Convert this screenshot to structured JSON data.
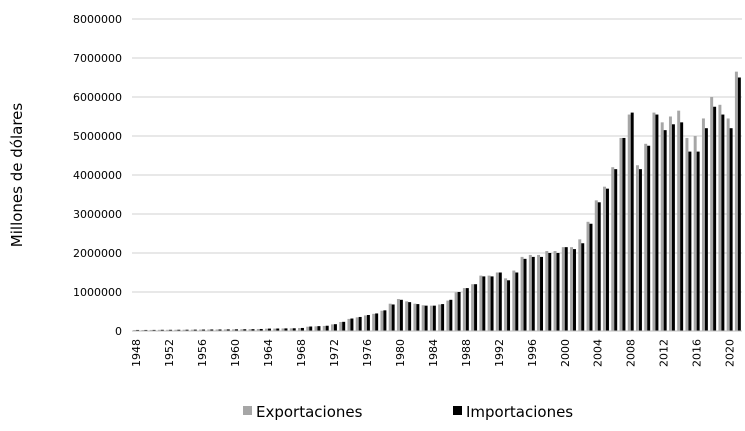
{
  "chart_data": {
    "type": "bar",
    "ylabel": "Millones de dólares",
    "categories": [
      "1948",
      null,
      null,
      null,
      "1952",
      null,
      null,
      null,
      "1956",
      null,
      null,
      null,
      "1960",
      null,
      null,
      null,
      "1964",
      null,
      null,
      null,
      "1968",
      null,
      null,
      null,
      "1972",
      null,
      null,
      null,
      "1976",
      null,
      null,
      null,
      "1980",
      null,
      null,
      null,
      "1984",
      null,
      null,
      null,
      "1988",
      null,
      null,
      null,
      "1992",
      null,
      null,
      null,
      "1996",
      null,
      null,
      null,
      "2000",
      null,
      null,
      null,
      "2004",
      null,
      null,
      null,
      "2008",
      null,
      null,
      null,
      "2012",
      null,
      null,
      null,
      "2016",
      null,
      null,
      null,
      "2020",
      null
    ],
    "series": [
      {
        "name": "Exportaciones",
        "color": "#a6a6a6",
        "values": [
          25000,
          25000,
          27000,
          30000,
          30000,
          31000,
          32000,
          34000,
          36000,
          38000,
          38000,
          40000,
          42000,
          44000,
          46000,
          50000,
          60000,
          62000,
          65000,
          68000,
          75000,
          110000,
          120000,
          130000,
          170000,
          230000,
          310000,
          350000,
          400000,
          440000,
          520000,
          700000,
          820000,
          760000,
          700000,
          660000,
          650000,
          680000,
          780000,
          990000,
          1100000,
          1200000,
          1420000,
          1420000,
          1500000,
          1350000,
          1550000,
          1900000,
          1950000,
          1950000,
          2050000,
          2050000,
          2150000,
          2150000,
          2350000,
          2800000,
          3350000,
          3700000,
          4200000,
          4950000,
          5550000,
          4250000,
          4800000,
          5600000,
          5350000,
          5500000,
          5650000,
          4950000,
          5000000,
          5450000,
          6000000,
          5800000,
          5450000,
          6650000
        ]
      },
      {
        "name": "Importaciones",
        "color": "#000000",
        "values": [
          27000,
          27000,
          28000,
          31000,
          31000,
          32000,
          33000,
          35000,
          37000,
          39000,
          39000,
          41000,
          43000,
          45000,
          47000,
          52000,
          62000,
          64000,
          67000,
          70000,
          78000,
          115000,
          125000,
          135000,
          175000,
          235000,
          320000,
          360000,
          410000,
          450000,
          530000,
          680000,
          800000,
          740000,
          690000,
          650000,
          650000,
          690000,
          800000,
          1000000,
          1100000,
          1200000,
          1400000,
          1400000,
          1500000,
          1300000,
          1500000,
          1850000,
          1900000,
          1900000,
          2000000,
          2000000,
          2150000,
          2100000,
          2250000,
          2750000,
          3300000,
          3650000,
          4150000,
          4950000,
          5600000,
          4150000,
          4750000,
          5550000,
          5150000,
          5300000,
          5350000,
          4600000,
          4600000,
          5200000,
          5750000,
          5550000,
          5200000,
          6500000
        ]
      }
    ],
    "ylim": [
      0,
      8000000
    ],
    "yticks": [
      0,
      1000000,
      2000000,
      3000000,
      4000000,
      5000000,
      6000000,
      7000000,
      8000000
    ],
    "grid": true,
    "legend": "bottom"
  }
}
